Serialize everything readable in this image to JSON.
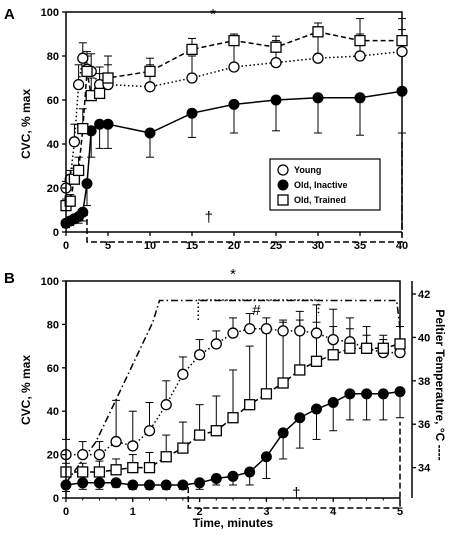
{
  "chart_data": [
    {
      "type": "line",
      "panel_label": "A",
      "ylabel": "CVC, % max",
      "xlabel": "",
      "xlim": [
        0,
        40
      ],
      "ylim": [
        0,
        100
      ],
      "xticks": [
        0,
        5,
        10,
        15,
        20,
        25,
        30,
        35,
        40
      ],
      "yticks": [
        0,
        20,
        40,
        60,
        80,
        100
      ],
      "legend_position": "lower-right",
      "annotations": [
        {
          "text": "*",
          "at": [
            17.5,
            99
          ]
        },
        {
          "text": "†",
          "at": [
            17,
            7
          ]
        }
      ],
      "series": [
        {
          "name": "Young",
          "marker": "open-circle",
          "line": "dotted",
          "x": [
            0,
            0.5,
            1,
            1.5,
            2,
            2.5,
            3,
            4,
            5,
            10,
            15,
            20,
            25,
            30,
            35,
            40
          ],
          "y": [
            20,
            24,
            41,
            67,
            79,
            74,
            73,
            67,
            67,
            66,
            70,
            75,
            77,
            79,
            80,
            82
          ],
          "err": [
            3,
            4,
            8,
            9,
            7,
            8,
            8,
            8,
            9,
            10,
            10,
            10,
            10,
            10,
            10,
            10
          ]
        },
        {
          "name": "Old, Inactive",
          "marker": "filled-circle",
          "line": "solid",
          "x": [
            0,
            0.5,
            1,
            1.5,
            2,
            2.5,
            3,
            4,
            5,
            10,
            15,
            20,
            25,
            30,
            35,
            40
          ],
          "y": [
            4,
            5,
            6,
            7,
            9,
            22,
            46,
            49,
            49,
            45,
            54,
            58,
            60,
            61,
            61,
            64
          ],
          "err": [
            2,
            2,
            2,
            3,
            4,
            10,
            12,
            11,
            11,
            11,
            11,
            13,
            14,
            16,
            17,
            19
          ]
        },
        {
          "name": "Old, Trained",
          "marker": "open-square",
          "line": "dashed",
          "x": [
            0,
            0.5,
            1,
            1.5,
            2,
            2.5,
            3,
            4,
            5,
            10,
            15,
            20,
            25,
            30,
            35,
            40
          ],
          "y": [
            12,
            14,
            24,
            28,
            47,
            73,
            62,
            63,
            70,
            73,
            83,
            87,
            84,
            91,
            87,
            87
          ],
          "err": [
            3,
            3,
            5,
            6,
            9,
            7,
            8,
            9,
            10,
            6,
            5,
            3,
            5,
            4,
            10,
            10
          ]
        }
      ]
    },
    {
      "type": "line",
      "panel_label": "B",
      "ylabel": "CVC, % max",
      "y2label": "Peltier Temperature, °C ----",
      "xlabel": "Time, minutes",
      "xlim": [
        0,
        5
      ],
      "ylim": [
        0,
        100
      ],
      "y2lim": [
        32.6,
        42.6
      ],
      "xticks": [
        0,
        1,
        2,
        3,
        4,
        5
      ],
      "yticks": [
        0,
        20,
        40,
        60,
        80,
        100
      ],
      "y2ticks": [
        34,
        36,
        38,
        40,
        42
      ],
      "annotations": [
        {
          "text": "*",
          "at": [
            2.5,
            102
          ]
        },
        {
          "text": "#",
          "at": [
            2.85,
            86
          ]
        },
        {
          "text": "†",
          "at": [
            3.45,
            5
          ]
        }
      ],
      "series": [
        {
          "name": "Young",
          "marker": "open-circle",
          "line": "dotted",
          "x": [
            0,
            0.25,
            0.5,
            0.75,
            1,
            1.25,
            1.5,
            1.75,
            2,
            2.25,
            2.5,
            2.75,
            3,
            3.25,
            3.5,
            3.75,
            4,
            4.25,
            4.5,
            4.75,
            5
          ],
          "y": [
            20,
            20,
            20,
            26,
            24,
            31,
            43,
            57,
            66,
            71,
            76,
            78,
            78,
            77,
            77,
            76,
            73,
            72,
            69,
            67,
            67
          ],
          "err": [
            7,
            6,
            6,
            19,
            16,
            13,
            11,
            8,
            7,
            6,
            7,
            7,
            5,
            5,
            5,
            5,
            6,
            6,
            6,
            6,
            6
          ]
        },
        {
          "name": "Old, Inactive",
          "marker": "filled-circle",
          "line": "solid",
          "x": [
            0,
            0.25,
            0.5,
            0.75,
            1,
            1.25,
            1.5,
            1.75,
            2,
            2.25,
            2.5,
            2.75,
            3,
            3.25,
            3.5,
            3.75,
            4,
            4.25,
            4.5,
            4.75,
            5
          ],
          "y": [
            6,
            7,
            7,
            7,
            6,
            6,
            6,
            6,
            7,
            9,
            10,
            12,
            19,
            30,
            37,
            41,
            44,
            48,
            48,
            48,
            49
          ],
          "err": [
            3,
            3,
            3,
            2,
            2,
            2,
            2,
            2,
            3,
            3,
            4,
            6,
            10,
            12,
            14,
            14,
            13,
            12,
            12,
            12,
            12
          ]
        },
        {
          "name": "Old, Trained",
          "marker": "open-square",
          "line": "dashed",
          "x": [
            0,
            0.25,
            0.5,
            0.75,
            1,
            1.25,
            1.5,
            1.75,
            2,
            2.25,
            2.5,
            2.75,
            3,
            3.25,
            3.5,
            3.75,
            4,
            4.25,
            4.5,
            4.75,
            5
          ],
          "y": [
            12,
            12,
            12,
            13,
            14,
            14,
            19,
            23,
            29,
            31,
            37,
            43,
            48,
            53,
            59,
            63,
            66,
            69,
            69,
            69,
            71
          ],
          "err": [
            4,
            4,
            5,
            5,
            6,
            7,
            10,
            12,
            14,
            16,
            22,
            27,
            28,
            28,
            27,
            26,
            21,
            14,
            10,
            6,
            8
          ]
        }
      ],
      "temperature": {
        "name": "Peltier Temperature",
        "x": [
          0,
          0.45,
          1.3,
          1.4,
          4.95,
          5
        ],
        "y": [
          33.3,
          35.2,
          40.7,
          41.7,
          41.7,
          40.4
        ]
      }
    }
  ]
}
